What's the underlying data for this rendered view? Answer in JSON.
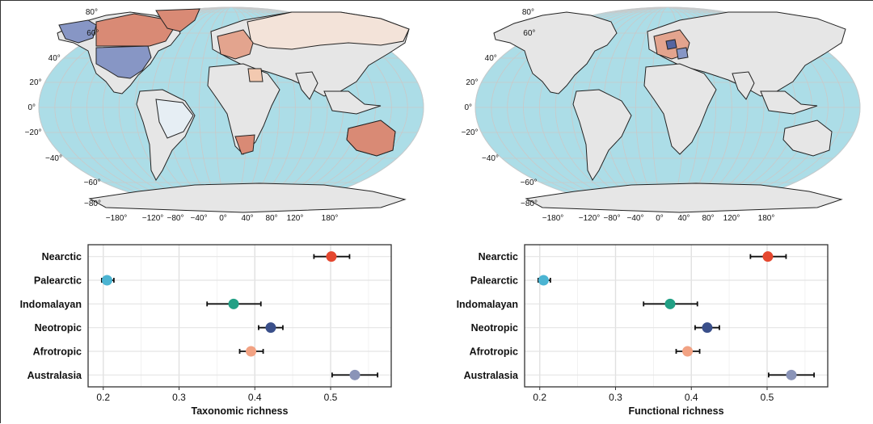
{
  "maps": [
    {
      "name": "taxonomic-map",
      "lat_labels": [
        "80°",
        "60°",
        "40°",
        "20°",
        "0°",
        "−20°",
        "−40°",
        "−60°",
        "−80°"
      ],
      "lon_labels": [
        "−180°",
        "−120°",
        "−80°",
        "−40°",
        "0°",
        "40°",
        "80°",
        "120°",
        "180°"
      ],
      "ocean_color": "#acdde7",
      "land_color": "#e6e6e6",
      "highlights": [
        {
          "region": "Alaska",
          "color": "#8796c5"
        },
        {
          "region": "United States",
          "color": "#8796c5"
        },
        {
          "region": "Canada",
          "color": "#d98a75"
        },
        {
          "region": "Greenland",
          "color": "#d98a75"
        },
        {
          "region": "Russia",
          "color": "#f3e3d9"
        },
        {
          "region": "Europe",
          "color": "#e3a48e"
        },
        {
          "region": "Egypt",
          "color": "#f3c9b0"
        },
        {
          "region": "South Africa",
          "color": "#d98a75"
        },
        {
          "region": "Australia",
          "color": "#d98a75"
        },
        {
          "region": "Brazil",
          "color": "#e6eef4"
        }
      ]
    },
    {
      "name": "functional-map",
      "lat_labels": [
        "80°",
        "60°",
        "40°",
        "20°",
        "0°",
        "−20°",
        "−40°",
        "−60°",
        "−80°"
      ],
      "lon_labels": [
        "−180°",
        "−120°",
        "−80°",
        "−40°",
        "0°",
        "40°",
        "80°",
        "120°",
        "180°"
      ],
      "ocean_color": "#acdde7",
      "land_color": "#e6e6e6",
      "highlights": [
        {
          "region": "Europe",
          "color": "#e3a48e"
        },
        {
          "region": "Germany",
          "color": "#5565a0"
        },
        {
          "region": "Balkans",
          "color": "#8796c5"
        }
      ]
    }
  ],
  "chart_data": [
    {
      "type": "scatter",
      "title": "",
      "xlabel": "Taxonomic richness",
      "ylabel": "",
      "xlim": [
        0.18,
        0.58
      ],
      "xticks": [
        0.2,
        0.3,
        0.4,
        0.5
      ],
      "grid": true,
      "categories": [
        "Nearctic",
        "Palearctic",
        "Indomalayan",
        "Neotropic",
        "Afrotropic",
        "Australasia"
      ],
      "values": [
        0.501,
        0.205,
        0.372,
        0.421,
        0.395,
        0.532
      ],
      "error_low": [
        0.478,
        0.198,
        0.337,
        0.405,
        0.38,
        0.502
      ],
      "error_high": [
        0.525,
        0.214,
        0.408,
        0.437,
        0.411,
        0.562
      ],
      "colors": [
        "#e5472f",
        "#4bb4d2",
        "#22a085",
        "#3a4f8a",
        "#f2a283",
        "#8a94b8"
      ]
    },
    {
      "type": "scatter",
      "title": "",
      "xlabel": "Functional richness",
      "ylabel": "",
      "xlim": [
        0.18,
        0.58
      ],
      "xticks": [
        0.2,
        0.3,
        0.4,
        0.5
      ],
      "grid": true,
      "categories": [
        "Nearctic",
        "Palearctic",
        "Indomalayan",
        "Neotropic",
        "Afrotropic",
        "Australasia"
      ],
      "values": [
        0.501,
        0.205,
        0.372,
        0.421,
        0.395,
        0.532
      ],
      "error_low": [
        0.478,
        0.198,
        0.337,
        0.405,
        0.38,
        0.502
      ],
      "error_high": [
        0.525,
        0.214,
        0.408,
        0.437,
        0.411,
        0.562
      ],
      "colors": [
        "#e5472f",
        "#4bb4d2",
        "#22a085",
        "#3a4f8a",
        "#f2a283",
        "#8a94b8"
      ]
    }
  ]
}
